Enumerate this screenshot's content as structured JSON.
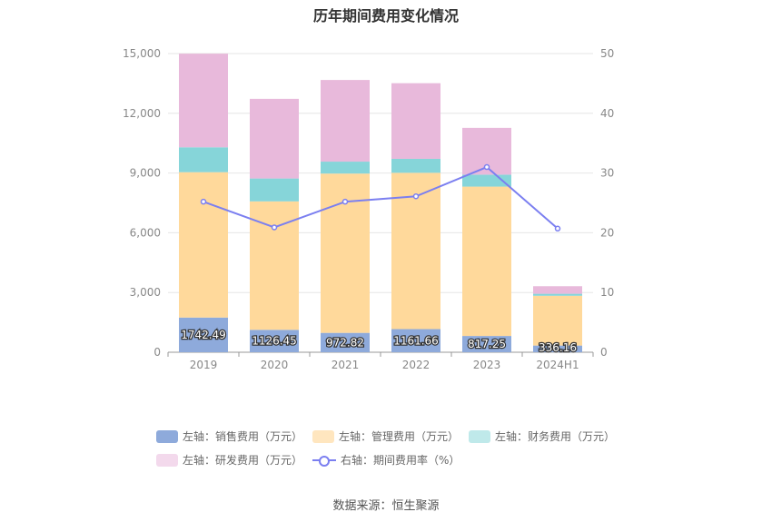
{
  "title": "历年期间费用变化情况",
  "source": "数据来源：恒生聚源",
  "chart_data": {
    "type": "bar",
    "stacked": true,
    "categories": [
      "2019",
      "2020",
      "2021",
      "2022",
      "2023",
      "2024H1"
    ],
    "left_axis": {
      "min": 0,
      "max": 15000,
      "ticks": [
        "0",
        "3,000",
        "6,000",
        "9,000",
        "12,000",
        "15,000"
      ]
    },
    "right_axis": {
      "min": 0,
      "max": 50,
      "ticks": [
        "0",
        "10",
        "20",
        "30",
        "40",
        "50"
      ]
    },
    "series": [
      {
        "name": "左轴：销售费用（万元）",
        "color": "#8eaadb",
        "values": [
          1742.49,
          1126.45,
          972.82,
          1161.66,
          817.25,
          336.16
        ],
        "labels": [
          "1742.49",
          "1126.45",
          "972.82",
          "1161.66",
          "817.25",
          "336.16"
        ]
      },
      {
        "name": "左轴：管理费用（万元）",
        "color": "#ffd99b",
        "legend_color": "#ffe6bf",
        "values": [
          7300,
          6450,
          8000,
          7850,
          7500,
          2500
        ]
      },
      {
        "name": "左轴：财务费用（万元）",
        "color": "#86d5d9",
        "legend_color": "#bfe9ea",
        "values": [
          1250,
          1150,
          600,
          700,
          600,
          100
        ]
      },
      {
        "name": "左轴：研发费用（万元）",
        "color": "#e8b9db",
        "legend_color": "#f3d9ec",
        "values": [
          4700,
          4000,
          4100,
          3800,
          2350,
          380
        ]
      }
    ],
    "line_series": {
      "name": "右轴：期间费用率（%）",
      "color": "#7b7ff0",
      "values": [
        25.2,
        20.9,
        25.2,
        26.1,
        31.0,
        20.7
      ]
    }
  }
}
